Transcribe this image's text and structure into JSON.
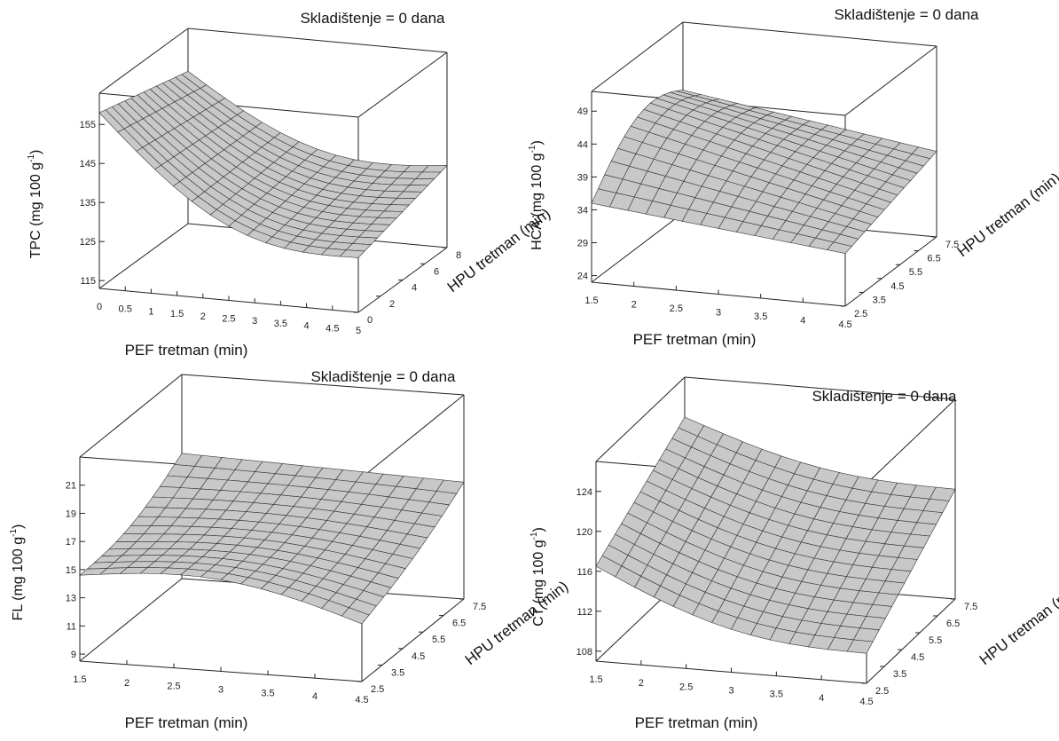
{
  "chart_data": [
    {
      "type": "surface3d",
      "title": "Skladištenje = 0 dana",
      "zlabel_main": "TPC (mg 100 g",
      "zlabel_sup": "-1",
      "zlabel_end": ")",
      "xlabel": "PEF tretman (min)",
      "ylabel": "HPU tretman (min)",
      "xticks": [
        "0",
        "0.5",
        "1",
        "1.5",
        "2",
        "2.5",
        "3",
        "3.5",
        "4",
        "4.5",
        "5"
      ],
      "yticks": [
        "0",
        "2",
        "4",
        "6",
        "8"
      ],
      "zticks": [
        "115",
        "125",
        "135",
        "145",
        "155"
      ],
      "xlim": [
        0,
        5
      ],
      "ylim": [
        0,
        8
      ],
      "zlim": [
        113,
        163
      ],
      "surface_corners": {
        "x0y0": 158,
        "x1y0": 127,
        "x0y1": 152,
        "x1y1": 134
      },
      "approx_minimum": 126
    },
    {
      "type": "surface3d",
      "title": "Skladištenje = 0 dana",
      "zlabel_main": "HCA (mg 100 g",
      "zlabel_sup": "-1",
      "zlabel_end": ")",
      "xlabel": "PEF tretman (min)",
      "ylabel": "HPU tretman (min)",
      "xticks": [
        "1.5",
        "2",
        "2.5",
        "3",
        "3.5",
        "4",
        "4.5"
      ],
      "yticks": [
        "2.5",
        "3.5",
        "4.5",
        "5.5",
        "6.5",
        "7.5"
      ],
      "zticks": [
        "24",
        "29",
        "34",
        "39",
        "44",
        "49"
      ],
      "xlim": [
        1.5,
        4.5
      ],
      "ylim": [
        2.5,
        7.5
      ],
      "zlim": [
        23,
        52
      ],
      "surface_corners": {
        "x0y0": 35,
        "x1y0": 31,
        "x0y1": 40,
        "x1y1": 36
      },
      "approx_maximum": 44
    },
    {
      "type": "surface3d",
      "title": "Skladištenje = 0 dana",
      "zlabel_main": "FL (mg 100 g",
      "zlabel_sup": "-1",
      "zlabel_end": ")",
      "xlabel": "PEF tretman (min)",
      "ylabel": "HPU tretman (min)",
      "xticks": [
        "1.5",
        "2",
        "2.5",
        "3",
        "3.5",
        "4",
        "4.5"
      ],
      "yticks": [
        "2.5",
        "3.5",
        "4.5",
        "5.5",
        "6.5",
        "7.5"
      ],
      "zticks": [
        "9",
        "11",
        "13",
        "15",
        "17",
        "19",
        "21"
      ],
      "xlim": [
        1.5,
        4.5
      ],
      "ylim": [
        2.5,
        7.5
      ],
      "zlim": [
        8.5,
        23
      ],
      "surface_corners": {
        "x0y0": 14.6,
        "x1y0": 12.6,
        "x0y1": 17.4,
        "x1y1": 16.8
      },
      "approx_saddle": 15.8
    },
    {
      "type": "surface3d",
      "title": "Skladištenje = 0 dana",
      "zlabel_main": "CT (mg 100 g",
      "zlabel_sup": "-1",
      "zlabel_end": ")",
      "xlabel": "PEF tretman (min)",
      "ylabel": "HPU tretman (min)",
      "xticks": [
        "1.5",
        "2",
        "2.5",
        "3",
        "3.5",
        "4",
        "4.5"
      ],
      "yticks": [
        "2.5",
        "3.5",
        "4.5",
        "5.5",
        "6.5",
        "7.5"
      ],
      "zticks": [
        "108",
        "112",
        "116",
        "120",
        "124"
      ],
      "xlim": [
        1.5,
        4.5
      ],
      "ylim": [
        2.5,
        7.5
      ],
      "zlim": [
        107,
        127
      ],
      "surface_corners": {
        "x0y0": 116.5,
        "x1y0": 110,
        "x0y1": 123,
        "x1y1": 118
      },
      "approx_minimum": 110
    }
  ]
}
